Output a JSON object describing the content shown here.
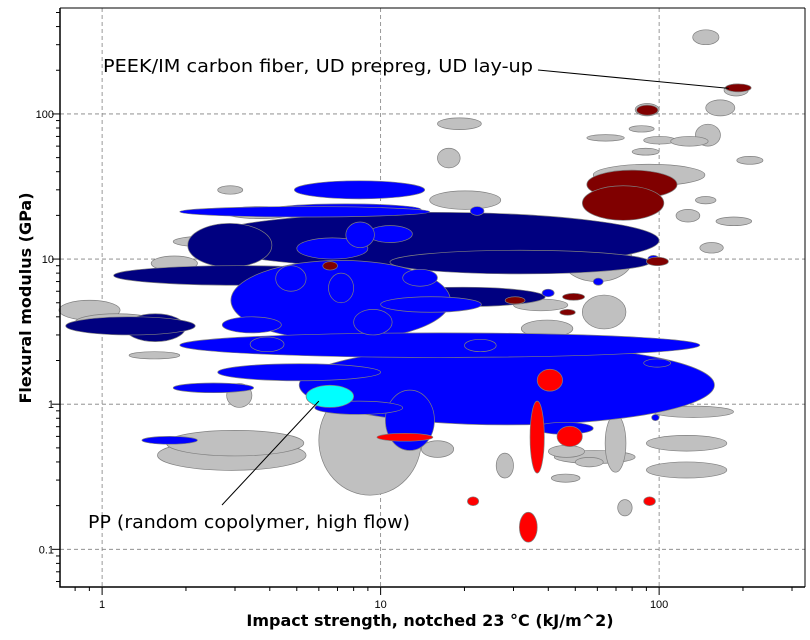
{
  "chart_data": {
    "type": "scatter",
    "subtype": "bubble-ranges",
    "title": "",
    "xlabel": "Impact strength, notched 23 °C (kJ/m^2)",
    "ylabel": "Flexural modulus (GPa)",
    "xscale": "log",
    "yscale": "log",
    "xlim": [
      0.706,
      334
    ],
    "ylim": [
      0.055,
      537
    ],
    "xticks": [
      {
        "value": 1,
        "label": "1"
      },
      {
        "value": 10,
        "label": "10"
      },
      {
        "value": 100,
        "label": "100"
      }
    ],
    "yticks": [
      {
        "value": 0.1,
        "label": "0.1"
      },
      {
        "value": 1,
        "label": "1"
      },
      {
        "value": 10,
        "label": "10"
      },
      {
        "value": 100,
        "label": "100"
      }
    ],
    "grid": true,
    "colors": {
      "gray": "#c0c0c0",
      "navy": "#000080",
      "blue": "#0000ff",
      "cyan": "#00ffff",
      "red": "#ff0000",
      "darkred": "#800000",
      "outline": "#7f7f7f"
    },
    "bubbles_format": "[x_min, x_max, y_min, y_max, category]",
    "bubbles": [
      [
        132,
        164,
        300,
        380,
        "gray"
      ],
      [
        171,
        209,
        133,
        161,
        "gray"
      ],
      [
        147,
        187,
        97,
        125,
        "gray"
      ],
      [
        82,
        100,
        97,
        118,
        "gray"
      ],
      [
        16,
        23,
        78,
        94,
        "gray"
      ],
      [
        135,
        166,
        60,
        85,
        "gray"
      ],
      [
        16,
        19.3,
        42.5,
        58,
        "gray"
      ],
      [
        78,
        96,
        75,
        83,
        "gray"
      ],
      [
        88,
        115,
        62,
        70,
        "gray"
      ],
      [
        55,
        75,
        65,
        72,
        "gray"
      ],
      [
        110,
        150,
        60,
        70,
        "gray"
      ],
      [
        80,
        100,
        52,
        58,
        "gray"
      ],
      [
        190,
        236,
        45,
        51,
        "gray"
      ],
      [
        58,
        146,
        32,
        45,
        "gray"
      ],
      [
        15,
        27,
        22,
        29.5,
        "gray"
      ],
      [
        135,
        160,
        24,
        27,
        "gray"
      ],
      [
        160,
        215,
        17,
        19.5,
        "gray"
      ],
      [
        115,
        140,
        18,
        22,
        "gray"
      ],
      [
        140,
        170,
        11,
        13,
        "gray"
      ],
      [
        0.7,
        1.16,
        3.8,
        5.2,
        "gray"
      ],
      [
        0.8,
        1.6,
        3.2,
        4.2,
        "gray"
      ],
      [
        1.58,
        5.4,
        0.35,
        0.565,
        "gray"
      ],
      [
        1.7,
        5.3,
        0.44,
        0.66,
        "gray"
      ],
      [
        6,
        14,
        0.236,
        1.35,
        "gray"
      ],
      [
        14,
        18.3,
        0.43,
        0.56,
        "gray"
      ],
      [
        2.8,
        3.45,
        0.95,
        1.39,
        "gray"
      ],
      [
        90,
        175,
        0.475,
        0.61,
        "gray"
      ],
      [
        90,
        175,
        0.31,
        0.4,
        "gray"
      ],
      [
        42,
        82,
        0.39,
        0.48,
        "gray"
      ],
      [
        26,
        30,
        0.31,
        0.46,
        "gray"
      ],
      [
        41,
        52,
        0.29,
        0.33,
        "gray"
      ],
      [
        71,
        80,
        0.17,
        0.22,
        "gray"
      ],
      [
        40,
        54,
        0.43,
        0.52,
        "gray"
      ],
      [
        50,
        63,
        0.37,
        0.43,
        "gray"
      ],
      [
        95,
        185,
        0.81,
        0.97,
        "gray"
      ],
      [
        64,
        76,
        0.34,
        0.85,
        "gray"
      ],
      [
        53,
        76,
        3.3,
        5.65,
        "gray"
      ],
      [
        30,
        47,
        4.4,
        5.3,
        "gray"
      ],
      [
        32,
        49,
        2.9,
        3.8,
        "gray"
      ],
      [
        45,
        80,
        7,
        14,
        "gray"
      ],
      [
        2.77,
        4.9,
        19,
        23,
        "gray"
      ],
      [
        1.8,
        3.6,
        12,
        14.5,
        "gray"
      ],
      [
        1.5,
        2.2,
        8.3,
        10.5,
        "gray"
      ],
      [
        1.25,
        1.9,
        2.05,
        2.3,
        "gray"
      ],
      [
        7,
        12,
        19,
        23,
        "gray"
      ],
      [
        2.6,
        3.2,
        28,
        32,
        "gray"
      ],
      [
        2.25,
        100,
        8.6,
        21,
        "navy"
      ],
      [
        2.03,
        4.07,
        8.8,
        17.6,
        "navy"
      ],
      [
        1.1,
        8.7,
        6.6,
        9,
        "navy"
      ],
      [
        10.8,
        93,
        7.9,
        11.5,
        "navy"
      ],
      [
        1.21,
        1.99,
        2.7,
        4.2,
        "navy"
      ],
      [
        0.74,
        2.16,
        3.0,
        4.0,
        "navy"
      ],
      [
        10,
        39,
        4.7,
        6.4,
        "navy"
      ],
      [
        5.1,
        158,
        0.72,
        2.55,
        "blue"
      ],
      [
        4.9,
        14.4,
        26,
        34.6,
        "blue"
      ],
      [
        4,
        14,
        20,
        24,
        "blue"
      ],
      [
        2.9,
        17.8,
        2.75,
        9.8,
        "blue"
      ],
      [
        1.9,
        140,
        2.1,
        3.1,
        "blue"
      ],
      [
        2.6,
        10,
        1.45,
        1.9,
        "blue"
      ],
      [
        1.39,
        2.2,
        0.53,
        0.6,
        "blue"
      ],
      [
        2.7,
        4.4,
        3.1,
        4.0,
        "blue"
      ],
      [
        10.4,
        15.6,
        0.48,
        1.25,
        "blue"
      ],
      [
        36,
        58,
        0.62,
        0.75,
        "blue"
      ],
      [
        10,
        23,
        4.3,
        5.5,
        "blue"
      ],
      [
        88,
        110,
        1.8,
        2.05,
        "blue"
      ],
      [
        1.9,
        15,
        19.5,
        23,
        "blue"
      ],
      [
        1.8,
        3.5,
        1.2,
        1.4,
        "blue"
      ],
      [
        5.8,
        12,
        0.85,
        1.05,
        "blue"
      ],
      [
        5,
        9,
        10,
        14,
        "blue"
      ],
      [
        9,
        13,
        13,
        17,
        "blue"
      ],
      [
        6.5,
        8,
        5,
        8,
        "blue"
      ],
      [
        4.2,
        5.4,
        6,
        9,
        "blue"
      ],
      [
        8,
        11,
        3,
        4.5,
        "blue"
      ],
      [
        20,
        26,
        2.3,
        2.8,
        "blue"
      ],
      [
        3.4,
        4.5,
        2.3,
        2.9,
        "blue"
      ],
      [
        12,
        16,
        6.5,
        8.5,
        "blue"
      ],
      [
        7.5,
        9.5,
        12,
        18,
        "blue"
      ],
      [
        94,
        100,
        0.77,
        0.85,
        "blue"
      ],
      [
        91,
        100,
        9.4,
        10.6,
        "blue"
      ],
      [
        58,
        63,
        6.6,
        7.4,
        "blue"
      ],
      [
        21,
        23.5,
        20,
        23,
        "blue"
      ],
      [
        38,
        42,
        5.5,
        6.2,
        "blue"
      ],
      [
        5.4,
        8,
        0.95,
        1.35,
        "cyan"
      ],
      [
        36.5,
        45,
        1.23,
        1.74,
        "red"
      ],
      [
        34.4,
        38.7,
        0.335,
        1.05,
        "red"
      ],
      [
        43,
        53,
        0.51,
        0.705,
        "red"
      ],
      [
        9.7,
        15.4,
        0.556,
        0.63,
        "red"
      ],
      [
        20.5,
        22.5,
        0.2,
        0.23,
        "red"
      ],
      [
        88,
        97,
        0.2,
        0.23,
        "red"
      ],
      [
        31.5,
        36.5,
        0.112,
        0.18,
        "red"
      ],
      [
        173,
        214,
        142,
        161,
        "darkred"
      ],
      [
        83,
        99,
        98,
        115,
        "darkred"
      ],
      [
        55,
        116,
        26,
        41,
        "darkred"
      ],
      [
        53,
        104,
        18.5,
        32,
        "darkred"
      ],
      [
        6.2,
        7.0,
        8.4,
        9.6,
        "darkred"
      ],
      [
        90,
        108,
        9,
        10.3,
        "darkred"
      ],
      [
        28,
        33,
        4.9,
        5.5,
        "darkred"
      ],
      [
        45,
        54,
        5.2,
        5.8,
        "darkred"
      ],
      [
        44,
        50,
        4.1,
        4.5,
        "darkred"
      ]
    ],
    "annotations": [
      {
        "text": "PEEK/IM carbon fiber, UD prepreg, UD lay-up",
        "target": [
          178,
          150
        ]
      },
      {
        "text": "PP (random copolymer, high flow)",
        "target": [
          6.0,
          1.05
        ]
      }
    ]
  }
}
